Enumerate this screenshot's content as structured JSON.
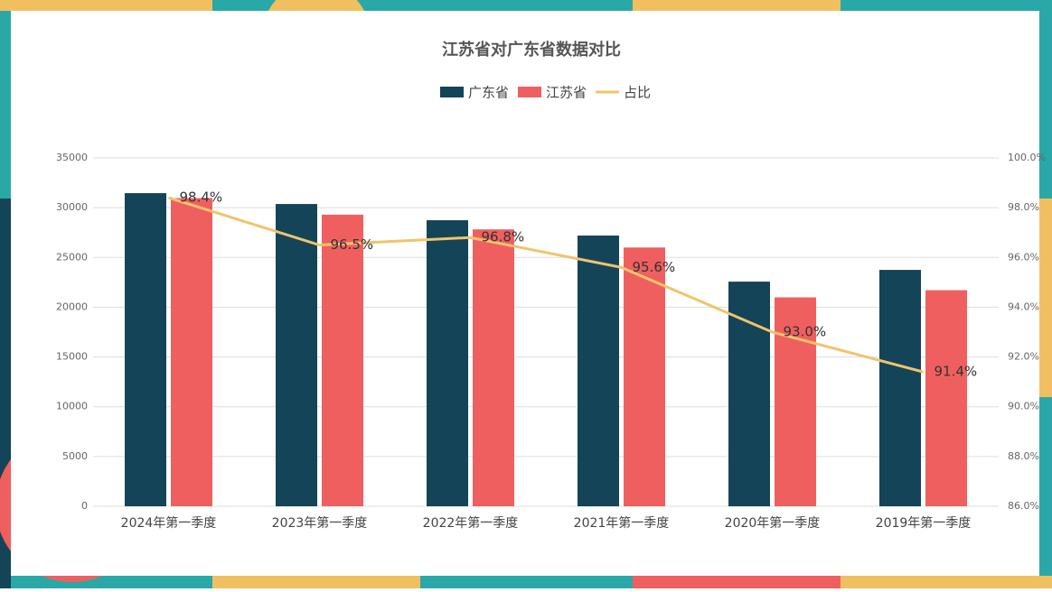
{
  "chart_data": {
    "type": "bar",
    "title": "江苏省对广东省数据对比",
    "categories": [
      "2024年第一季度",
      "2023年第一季度",
      "2022年第一季度",
      "2021年第一季度",
      "2020年第一季度",
      "2019年第一季度"
    ],
    "series": [
      {
        "name": "广东省",
        "color": "#144458",
        "values": [
          31460,
          30370,
          28740,
          27200,
          22570,
          23750
        ]
      },
      {
        "name": "江苏省",
        "color": "#f05f5f",
        "values": [
          30960,
          29300,
          27820,
          26000,
          20990,
          21710
        ]
      },
      {
        "name": "占比",
        "type": "line",
        "axis": "y2",
        "color": "#f0c46c",
        "values": [
          98.4,
          96.5,
          96.8,
          95.6,
          93.0,
          91.4
        ],
        "value_labels": [
          "98.4%",
          "96.5%",
          "96.8%",
          "95.6%",
          "93.0%",
          "91.4%"
        ]
      }
    ],
    "ylim": [
      0,
      35000
    ],
    "yticks": [
      0,
      5000,
      10000,
      15000,
      20000,
      25000,
      30000,
      35000
    ],
    "y2lim": [
      86,
      100
    ],
    "y2ticks": [
      {
        "value": 86,
        "label": "86.0%"
      },
      {
        "value": 88,
        "label": "88.0%"
      },
      {
        "value": 90,
        "label": "90.0%"
      },
      {
        "value": 92,
        "label": "92.0%"
      },
      {
        "value": 94,
        "label": "94.0%"
      },
      {
        "value": 96,
        "label": "96.0%"
      },
      {
        "value": 98,
        "label": "98.0%"
      },
      {
        "value": 100,
        "label": "100.0%"
      }
    ],
    "grid": true,
    "legend": "top"
  }
}
